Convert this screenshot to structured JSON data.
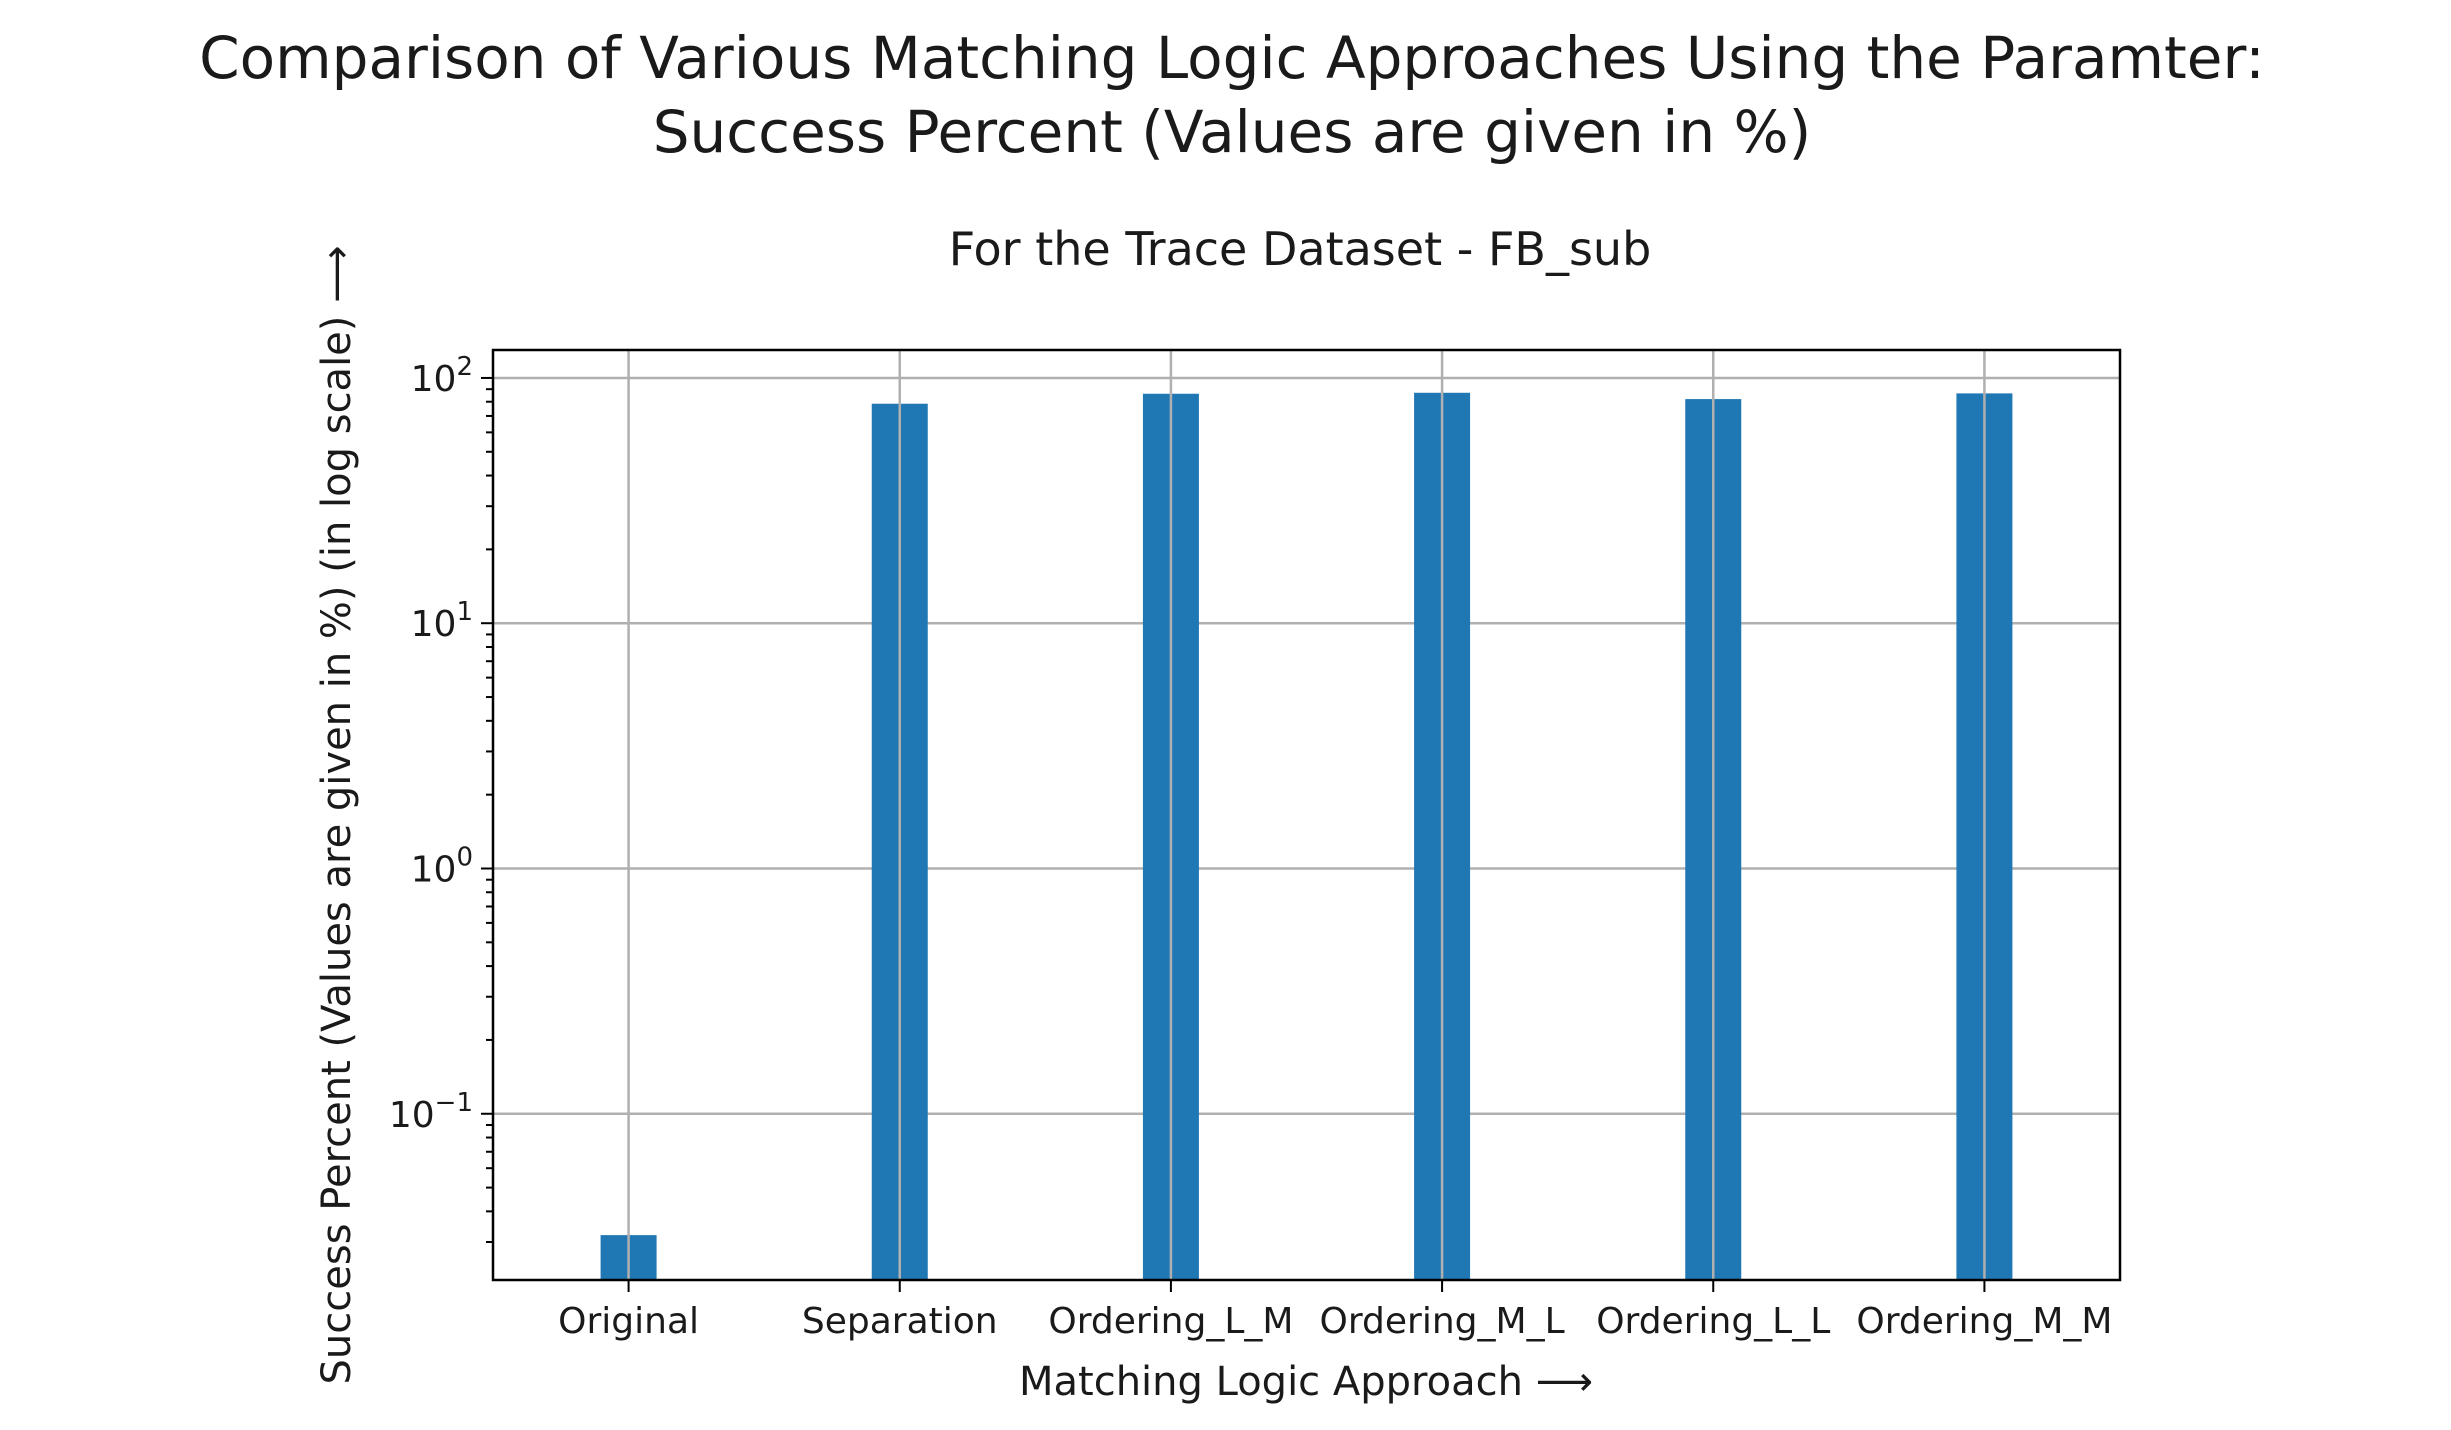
{
  "figure": {
    "suptitle_line1": "Comparison of Various Matching Logic Approaches Using the Paramter:",
    "suptitle_line2": "Success Percent (Values are given in %)"
  },
  "chart_data": {
    "type": "bar",
    "title": "For the Trace Dataset - FB_sub",
    "xlabel": "Matching Logic Approach ⟶",
    "ylabel": "Success Percent (Values are given in %) (in log scale) ⟶",
    "yscale": "log",
    "ylim": [
      0.021,
      130
    ],
    "grid": true,
    "categories": [
      "Original",
      "Separation",
      "Ordering_L_M",
      "Ordering_M_L",
      "Ordering_L_L",
      "Ordering_M_M"
    ],
    "values": [
      0.032,
      78.5,
      86.2,
      87.0,
      82.0,
      86.5
    ],
    "bar_color": "#1f77b4",
    "yticks": [
      {
        "value": 100,
        "base": "10",
        "exp": "2"
      },
      {
        "value": 10,
        "base": "10",
        "exp": "1"
      },
      {
        "value": 1,
        "base": "10",
        "exp": "0"
      },
      {
        "value": 0.1,
        "base": "10",
        "exp": "−1"
      }
    ]
  }
}
